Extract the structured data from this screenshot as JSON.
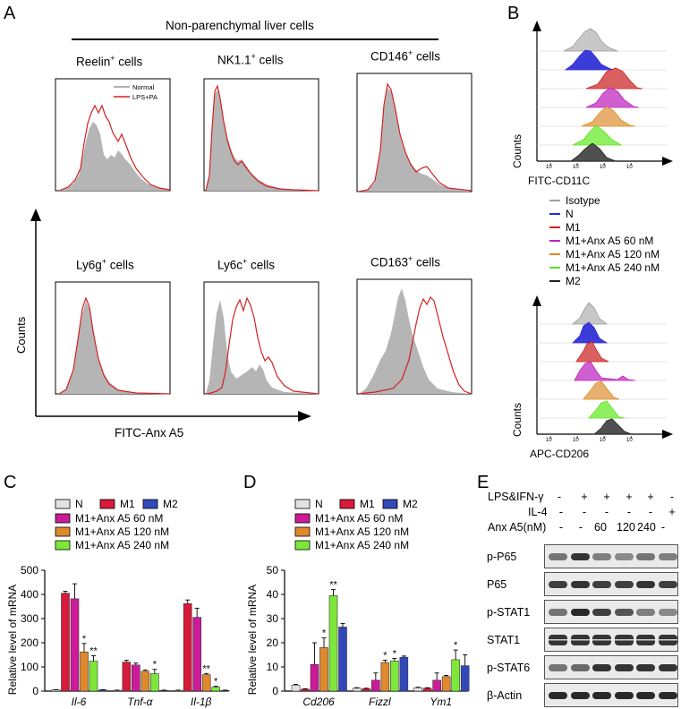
{
  "panels": {
    "a": "A",
    "b": "B",
    "c": "C",
    "d": "D",
    "e": "E"
  },
  "panel_a": {
    "header": "Non-parenchymal liver cells",
    "cells": [
      {
        "main": "Reelin",
        "sup": "+",
        "rest": " cells"
      },
      {
        "main": "NK1.1",
        "sup": "+",
        "rest": " cells"
      },
      {
        "main": "CD146",
        "sup": "+",
        "rest": " cells"
      },
      {
        "main": "Ly6g",
        "sup": "+",
        "rest": " cells"
      },
      {
        "main": "Ly6c",
        "sup": "+",
        "rest": " cells"
      },
      {
        "main": "CD163",
        "sup": "+",
        "rest": " cells"
      }
    ],
    "legend": [
      {
        "label": "Normal",
        "color": "#999999"
      },
      {
        "label": "LPS+PA",
        "color": "#d42020"
      }
    ],
    "y_axis": "Counts",
    "x_axis": "FITC-Anx A5"
  },
  "panel_b": {
    "top_x": "FITC-CD11C",
    "top_y": "Counts",
    "bottom_x": "APC-CD206",
    "bottom_y": "Counts",
    "ticks": [
      "10",
      "1",
      "2",
      "3",
      "4"
    ],
    "legend": [
      {
        "label": "Isotype",
        "color": "#a0a0a0"
      },
      {
        "label": "N",
        "color": "#2a2ad8"
      },
      {
        "label": "M1",
        "color": "#d42020"
      },
      {
        "label": "M1+Anx A5 60 nM",
        "color": "#c020c0"
      },
      {
        "label": "M1+Anx A5 120 nM",
        "color": "#e08a20"
      },
      {
        "label": "M1+Anx A5 240 nM",
        "color": "#60e020"
      },
      {
        "label": "M2",
        "color": "#222222"
      }
    ]
  },
  "chart_data": [
    {
      "type": "bar",
      "panel": "C",
      "ylabel": "Relative level of mRNA",
      "ylim": [
        0,
        500
      ],
      "yticks": [
        "0",
        "100",
        "200",
        "300",
        "400",
        "500"
      ],
      "categories": [
        "Il-6",
        "Tnf-α",
        "Il-1β"
      ],
      "legend_top": [
        {
          "label": "N",
          "color": "#e3e3e3"
        },
        {
          "label": "M1",
          "color": "#d81a3a"
        },
        {
          "label": "M2",
          "color": "#3348b8"
        }
      ],
      "legend_list": [
        {
          "label": "M1+Anx A5 60 nM",
          "color": "#cc1a99"
        },
        {
          "label": "M1+Anx A5 120 nM",
          "color": "#e0892c"
        },
        {
          "label": "M1+Anx A5 240 nM",
          "color": "#7ee83a"
        }
      ],
      "series": [
        {
          "name": "N",
          "color": "#e3e3e3",
          "values": [
            5,
            3,
            3
          ],
          "errors": [
            1,
            1,
            1
          ]
        },
        {
          "name": "M1",
          "color": "#d81a3a",
          "values": [
            405,
            120,
            362
          ],
          "errors": [
            8,
            8,
            15
          ]
        },
        {
          "name": "M1+Anx A5 60 nM",
          "color": "#cc1a99",
          "values": [
            382,
            108,
            305
          ],
          "errors": [
            62,
            8,
            38
          ]
        },
        {
          "name": "M1+Anx A5 120 nM",
          "color": "#e0892c",
          "values": [
            162,
            82,
            68
          ],
          "errors": [
            35,
            5,
            5
          ]
        },
        {
          "name": "M1+Anx A5 240 nM",
          "color": "#7ee83a",
          "values": [
            124,
            72,
            16
          ],
          "errors": [
            22,
            18,
            4
          ]
        },
        {
          "name": "M2",
          "color": "#3348b8",
          "values": [
            5,
            3,
            3
          ],
          "errors": [
            1,
            1,
            1
          ]
        }
      ],
      "annotations": [
        [
          "",
          "",
          "",
          "*",
          "**",
          ""
        ],
        [
          "",
          "",
          "",
          "",
          "*",
          ""
        ],
        [
          "",
          "",
          "",
          "**",
          "*",
          ""
        ]
      ]
    },
    {
      "type": "bar",
      "panel": "D",
      "ylabel": "Relative level of mRNA",
      "ylim": [
        0,
        50
      ],
      "yticks": [
        "0",
        "10",
        "20",
        "30",
        "40",
        "50"
      ],
      "categories": [
        "Cd206",
        "Fizzl",
        "Ym1"
      ],
      "legend_top": [
        {
          "label": "N",
          "color": "#e3e3e3"
        },
        {
          "label": "M1",
          "color": "#d81a3a"
        },
        {
          "label": "M2",
          "color": "#3348b8"
        }
      ],
      "legend_list": [
        {
          "label": "M1+Anx A5 60 nM",
          "color": "#cc1a99"
        },
        {
          "label": "M1+Anx A5 120 nM",
          "color": "#e0892c"
        },
        {
          "label": "M1+Anx A5 240 nM",
          "color": "#7ee83a"
        }
      ],
      "series": [
        {
          "name": "N",
          "color": "#e3e3e3",
          "values": [
            2.5,
            1.2,
            1.4
          ],
          "errors": [
            0.3,
            0.2,
            0.2
          ]
        },
        {
          "name": "M1",
          "color": "#d81a3a",
          "values": [
            0.8,
            1.0,
            1.2
          ],
          "errors": [
            0.2,
            0.2,
            0.2
          ]
        },
        {
          "name": "M1+Anx A5 60 nM",
          "color": "#cc1a99",
          "values": [
            11,
            4.5,
            4.5
          ],
          "errors": [
            9,
            3,
            3
          ]
        },
        {
          "name": "M1+Anx A5 120 nM",
          "color": "#e0892c",
          "values": [
            18,
            11.8,
            6
          ],
          "errors": [
            4,
            1,
            0.5
          ]
        },
        {
          "name": "M1+Anx A5 240 nM",
          "color": "#7ee83a",
          "values": [
            39.5,
            12.5,
            13
          ],
          "errors": [
            2.5,
            1,
            4
          ]
        },
        {
          "name": "M2",
          "color": "#3348b8",
          "values": [
            26.5,
            14,
            10.5
          ],
          "errors": [
            1.5,
            0.5,
            4.5
          ]
        }
      ],
      "annotations": [
        [
          "",
          "",
          "",
          "*",
          "**",
          ""
        ],
        [
          "",
          "",
          "",
          "*",
          "*",
          ""
        ],
        [
          "",
          "",
          "",
          "",
          "*",
          ""
        ]
      ]
    }
  ],
  "panel_e": {
    "treatments": [
      {
        "label": "LPS&IFN-γ",
        "values": [
          "-",
          "+",
          "+",
          "+",
          "+",
          "-"
        ]
      },
      {
        "label": "IL-4",
        "values": [
          "-",
          "-",
          "-",
          "-",
          "-",
          "+"
        ]
      },
      {
        "label": "Anx A5(nM)",
        "values": [
          "-",
          "-",
          "60",
          "120",
          "240",
          "-"
        ]
      }
    ],
    "blots": [
      "p-P65",
      "P65",
      "p-STAT1",
      "STAT1",
      "p-STAT6",
      "β-Actin"
    ]
  }
}
